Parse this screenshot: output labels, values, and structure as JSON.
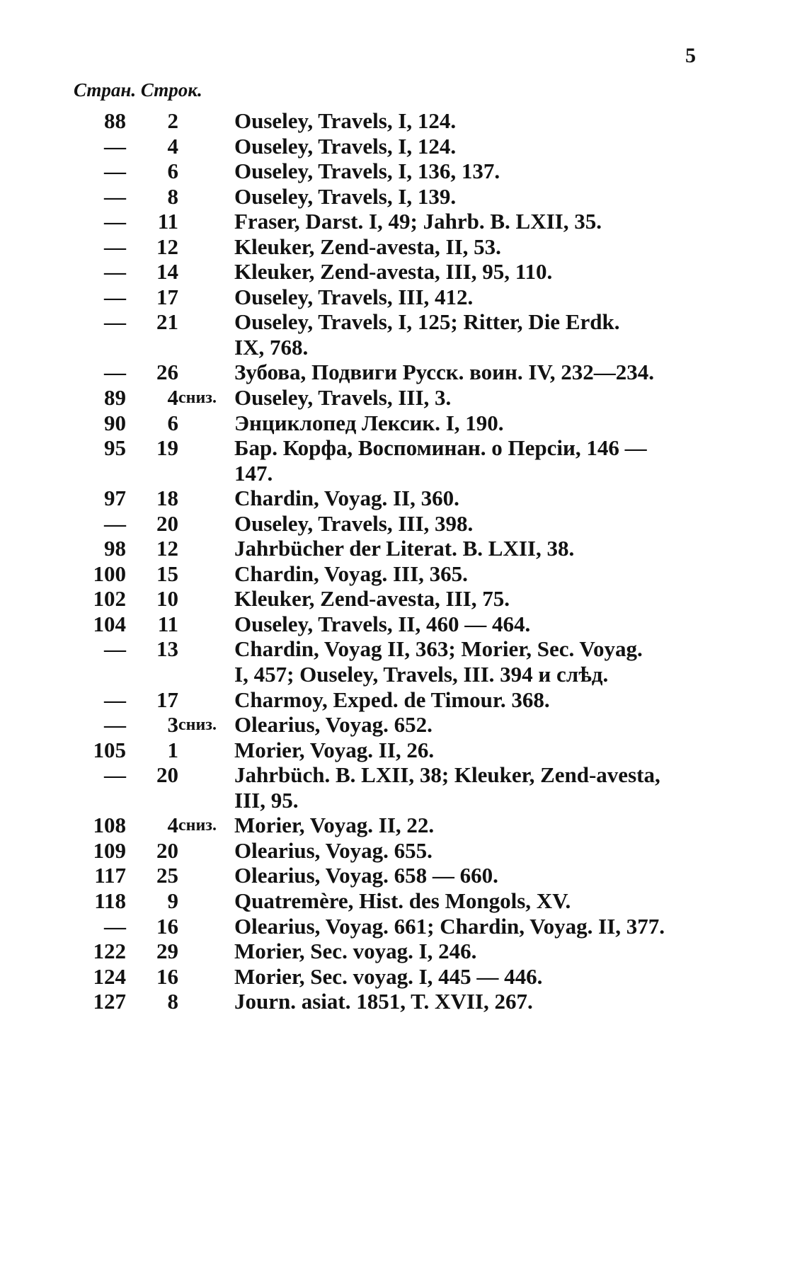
{
  "page_number": "5",
  "header": {
    "page_col": "Стран.",
    "line_col": "Строк."
  },
  "entries": [
    {
      "page": "88",
      "line": "2",
      "suffix": "",
      "text": [
        "Ouseley, Travels, I, 124."
      ]
    },
    {
      "page": "—",
      "line": "4",
      "suffix": "",
      "text": [
        "Ouseley, Travels, I, 124."
      ]
    },
    {
      "page": "—",
      "line": "6",
      "suffix": "",
      "text": [
        "Ouseley, Travels, I, 136, 137."
      ]
    },
    {
      "page": "—",
      "line": "8",
      "suffix": "",
      "text": [
        "Ouseley, Travels, I, 139."
      ]
    },
    {
      "page": "—",
      "line": "11",
      "suffix": "",
      "text": [
        "Fraser, Darst. I, 49; Jahrb. B. LXII, 35."
      ]
    },
    {
      "page": "—",
      "line": "12",
      "suffix": "",
      "text": [
        "Kleuker, Zend-avesta, II, 53."
      ]
    },
    {
      "page": "—",
      "line": "14",
      "suffix": "",
      "text": [
        "Kleuker, Zend-avesta, III, 95, 110."
      ]
    },
    {
      "page": "—",
      "line": "17",
      "suffix": "",
      "text": [
        "Ouseley, Travels, III, 412."
      ]
    },
    {
      "page": "—",
      "line": "21",
      "suffix": "",
      "text": [
        "Ouseley, Travels, I, 125; Ritter, Die Erdk.",
        "IX, 768."
      ]
    },
    {
      "page": "—",
      "line": "26",
      "suffix": "",
      "text": [
        "Зубова, Подвиги Русск. воин. IV, 232—234."
      ]
    },
    {
      "page": "89",
      "line": "4",
      "suffix": "сниз.",
      "text": [
        "Ouseley, Travels, III, 3."
      ]
    },
    {
      "page": "90",
      "line": "6",
      "suffix": "",
      "text": [
        "Энциклопед Лексик. I, 190."
      ]
    },
    {
      "page": "95",
      "line": "19",
      "suffix": "",
      "text": [
        "Бар. Корфа, Воспоминан. о Персіи, 146 —",
        "147."
      ]
    },
    {
      "page": "97",
      "line": "18",
      "suffix": "",
      "text": [
        "Chardin, Voyag. II, 360."
      ]
    },
    {
      "page": "—",
      "line": "20",
      "suffix": "",
      "text": [
        "Ouseley, Travels, III, 398."
      ]
    },
    {
      "page": "98",
      "line": "12",
      "suffix": "",
      "text": [
        "Jahrbücher der Literat. B. LXII, 38."
      ]
    },
    {
      "page": "100",
      "line": "15",
      "suffix": "",
      "text": [
        "Chardin, Voyag. III, 365."
      ]
    },
    {
      "page": "102",
      "line": "10",
      "suffix": "",
      "text": [
        "Kleuker, Zend-avesta, III, 75."
      ]
    },
    {
      "page": "104",
      "line": "11",
      "suffix": "",
      "text": [
        "Ouseley, Travels, II, 460 — 464."
      ]
    },
    {
      "page": "—",
      "line": "13",
      "suffix": "",
      "text": [
        "Chardin, Voyag II, 363; Morier, Sec. Voyag.",
        "I, 457; Ouseley, Travels, III. 394 и слѣд."
      ]
    },
    {
      "page": "—",
      "line": "17",
      "suffix": "",
      "text": [
        "Charmoy, Exped. de Timour. 368."
      ]
    },
    {
      "page": "—",
      "line": "3",
      "suffix": "сниз.",
      "text": [
        "Olearius, Voyag. 652."
      ]
    },
    {
      "page": "105",
      "line": "1",
      "suffix": "",
      "text": [
        "Morier, Voyag. II, 26."
      ]
    },
    {
      "page": "—",
      "line": "20",
      "suffix": "",
      "text": [
        "Jahrbüch. B. LXII, 38; Kleuker, Zend-avesta,",
        "III, 95."
      ]
    },
    {
      "page": "108",
      "line": "4",
      "suffix": "сниз.",
      "text": [
        "Morier, Voyag. II, 22."
      ]
    },
    {
      "page": "109",
      "line": "20",
      "suffix": "",
      "text": [
        "Olearius, Voyag. 655."
      ]
    },
    {
      "page": "117",
      "line": "25",
      "suffix": "",
      "text": [
        "Olearius, Voyag. 658 — 660."
      ]
    },
    {
      "page": "118",
      "line": "9",
      "suffix": "",
      "text": [
        "Quatremère, Hist. des Mongols, XV."
      ]
    },
    {
      "page": "—",
      "line": "16",
      "suffix": "",
      "text": [
        "Olearius, Voyag. 661; Chardin, Voyag. II, 377."
      ]
    },
    {
      "page": "122",
      "line": "29",
      "suffix": "",
      "text": [
        "Morier, Sec. voyag. I, 246."
      ]
    },
    {
      "page": "124",
      "line": "16",
      "suffix": "",
      "text": [
        "Morier, Sec. voyag. I, 445 — 446."
      ]
    },
    {
      "page": "127",
      "line": "8",
      "suffix": "",
      "text": [
        "Journ. asiat. 1851, T. XVII, 267."
      ]
    }
  ]
}
